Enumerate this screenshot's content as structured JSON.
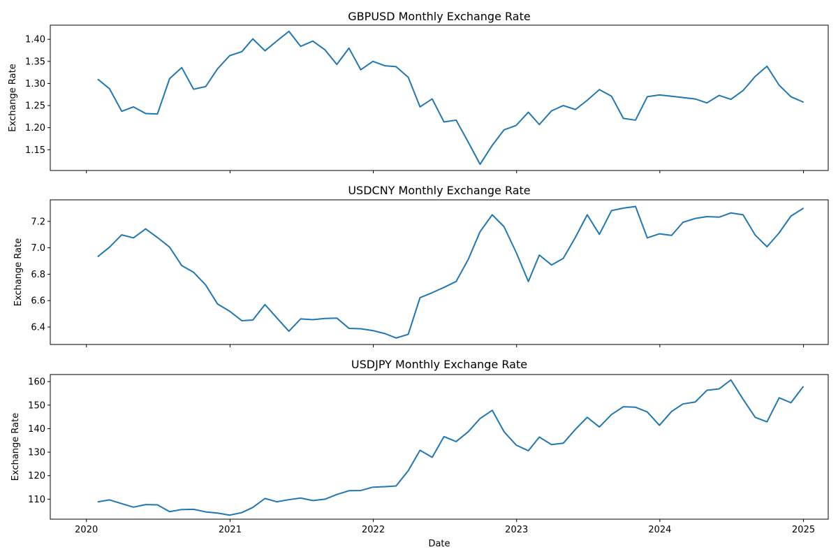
{
  "chart_data": [
    {
      "type": "line",
      "title": "GBPUSD Monthly Exchange Rate",
      "xlabel": "",
      "ylabel": "Exchange Rate",
      "x": [
        "2020-01-31",
        "2020-02-29",
        "2020-03-31",
        "2020-04-30",
        "2020-05-31",
        "2020-06-30",
        "2020-07-31",
        "2020-08-31",
        "2020-09-30",
        "2020-10-31",
        "2020-11-30",
        "2020-12-31",
        "2021-01-31",
        "2021-02-28",
        "2021-03-31",
        "2021-04-30",
        "2021-05-31",
        "2021-06-30",
        "2021-07-31",
        "2021-08-31",
        "2021-09-30",
        "2021-10-31",
        "2021-11-30",
        "2021-12-31",
        "2022-01-31",
        "2022-02-28",
        "2022-03-31",
        "2022-04-30",
        "2022-05-31",
        "2022-06-30",
        "2022-07-31",
        "2022-08-31",
        "2022-09-30",
        "2022-10-31",
        "2022-11-30",
        "2022-12-31",
        "2023-01-31",
        "2023-02-28",
        "2023-03-31",
        "2023-04-30",
        "2023-05-31",
        "2023-06-30",
        "2023-07-31",
        "2023-08-31",
        "2023-09-30",
        "2023-10-31",
        "2023-11-30",
        "2023-12-31",
        "2024-01-31",
        "2024-02-29",
        "2024-03-31",
        "2024-04-30",
        "2024-05-31",
        "2024-06-30",
        "2024-07-31",
        "2024-08-31",
        "2024-09-30",
        "2024-10-31",
        "2024-11-30",
        "2024-12-31"
      ],
      "values": [
        1.309,
        1.288,
        1.237,
        1.247,
        1.232,
        1.231,
        1.311,
        1.336,
        1.287,
        1.293,
        1.333,
        1.363,
        1.372,
        1.401,
        1.374,
        1.396,
        1.418,
        1.384,
        1.396,
        1.376,
        1.343,
        1.38,
        1.331,
        1.35,
        1.34,
        1.338,
        1.314,
        1.247,
        1.265,
        1.213,
        1.217,
        1.167,
        1.117,
        1.16,
        1.195,
        1.205,
        1.235,
        1.207,
        1.238,
        1.25,
        1.241,
        1.262,
        1.286,
        1.271,
        1.221,
        1.217,
        1.27,
        1.274,
        1.271,
        1.268,
        1.265,
        1.256,
        1.273,
        1.264,
        1.284,
        1.316,
        1.339,
        1.296,
        1.27,
        1.258
      ],
      "xlim": [
        "2019-10-01",
        "2025-03-05"
      ],
      "ylim": [
        1.103,
        1.432
      ],
      "yticks": [
        1.15,
        1.2,
        1.25,
        1.3,
        1.35,
        1.4
      ],
      "ytick_labels": [
        "1.15",
        "1.20",
        "1.25",
        "1.30",
        "1.35",
        "1.40"
      ],
      "xticks": [
        "2020-01-01",
        "2021-01-01",
        "2022-01-01",
        "2023-01-01",
        "2024-01-01",
        "2025-01-01"
      ],
      "xtick_labels": [],
      "grid": false,
      "color": "#1f77b4"
    },
    {
      "type": "line",
      "title": "USDCNY Monthly Exchange Rate",
      "xlabel": "",
      "ylabel": "Exchange Rate",
      "x": [
        "2020-01-31",
        "2020-02-29",
        "2020-03-31",
        "2020-04-30",
        "2020-05-31",
        "2020-06-30",
        "2020-07-31",
        "2020-08-31",
        "2020-09-30",
        "2020-10-31",
        "2020-11-30",
        "2020-12-31",
        "2021-01-31",
        "2021-02-28",
        "2021-03-31",
        "2021-04-30",
        "2021-05-31",
        "2021-06-30",
        "2021-07-31",
        "2021-08-31",
        "2021-09-30",
        "2021-10-31",
        "2021-11-30",
        "2021-12-31",
        "2022-01-31",
        "2022-02-28",
        "2022-03-31",
        "2022-04-30",
        "2022-05-31",
        "2022-06-30",
        "2022-07-31",
        "2022-08-31",
        "2022-09-30",
        "2022-10-31",
        "2022-11-30",
        "2022-12-31",
        "2023-01-31",
        "2023-02-28",
        "2023-03-31",
        "2023-04-30",
        "2023-05-31",
        "2023-06-30",
        "2023-07-31",
        "2023-08-31",
        "2023-09-30",
        "2023-10-31",
        "2023-11-30",
        "2023-12-31",
        "2024-01-31",
        "2024-02-29",
        "2024-03-31",
        "2024-04-30",
        "2024-05-31",
        "2024-06-30",
        "2024-07-31",
        "2024-08-31",
        "2024-09-30",
        "2024-10-31",
        "2024-11-30",
        "2024-12-31"
      ],
      "values": [
        6.935,
        7.005,
        7.098,
        7.075,
        7.143,
        7.078,
        7.005,
        6.865,
        6.815,
        6.718,
        6.575,
        6.52,
        6.448,
        6.453,
        6.57,
        6.47,
        6.368,
        6.462,
        6.456,
        6.465,
        6.468,
        6.39,
        6.387,
        6.373,
        6.35,
        6.317,
        6.345,
        6.622,
        6.66,
        6.7,
        6.745,
        6.913,
        7.122,
        7.25,
        7.16,
        6.965,
        6.745,
        6.945,
        6.87,
        6.92,
        7.08,
        7.25,
        7.102,
        7.282,
        7.3,
        7.313,
        7.075,
        7.106,
        7.094,
        7.193,
        7.222,
        7.236,
        7.232,
        7.264,
        7.25,
        7.096,
        7.008,
        7.113,
        7.24,
        7.298
      ],
      "xlim": [
        "2019-10-01",
        "2025-03-05"
      ],
      "ylim": [
        6.268,
        7.363
      ],
      "yticks": [
        6.4,
        6.6,
        6.8,
        7.0,
        7.2
      ],
      "ytick_labels": [
        "6.4",
        "6.6",
        "6.8",
        "7.0",
        "7.2"
      ],
      "xticks": [
        "2020-01-01",
        "2021-01-01",
        "2022-01-01",
        "2023-01-01",
        "2024-01-01",
        "2025-01-01"
      ],
      "xtick_labels": [],
      "grid": false,
      "color": "#1f77b4"
    },
    {
      "type": "line",
      "title": "USDJPY Monthly Exchange Rate",
      "xlabel": "Date",
      "ylabel": "Exchange Rate",
      "x": [
        "2020-01-31",
        "2020-02-29",
        "2020-03-31",
        "2020-04-30",
        "2020-05-31",
        "2020-06-30",
        "2020-07-31",
        "2020-08-31",
        "2020-09-30",
        "2020-10-31",
        "2020-11-30",
        "2020-12-31",
        "2021-01-31",
        "2021-02-28",
        "2021-03-31",
        "2021-04-30",
        "2021-05-31",
        "2021-06-30",
        "2021-07-31",
        "2021-08-31",
        "2021-09-30",
        "2021-10-31",
        "2021-11-30",
        "2021-12-31",
        "2022-01-31",
        "2022-02-28",
        "2022-03-31",
        "2022-04-30",
        "2022-05-31",
        "2022-06-30",
        "2022-07-31",
        "2022-08-31",
        "2022-09-30",
        "2022-10-31",
        "2022-11-30",
        "2022-12-31",
        "2023-01-31",
        "2023-02-28",
        "2023-03-31",
        "2023-04-30",
        "2023-05-31",
        "2023-06-30",
        "2023-07-31",
        "2023-08-31",
        "2023-09-30",
        "2023-10-31",
        "2023-11-30",
        "2023-12-31",
        "2024-01-31",
        "2024-02-29",
        "2024-03-31",
        "2024-04-30",
        "2024-05-31",
        "2024-06-30",
        "2024-07-31",
        "2024-08-31",
        "2024-09-30",
        "2024-10-31",
        "2024-11-30",
        "2024-12-31"
      ],
      "values": [
        108.9,
        109.7,
        108.1,
        106.6,
        107.7,
        107.6,
        104.7,
        105.6,
        105.7,
        104.6,
        104.1,
        103.2,
        104.3,
        106.5,
        110.3,
        108.9,
        109.8,
        110.5,
        109.4,
        110.0,
        112.0,
        113.6,
        113.7,
        115.1,
        115.3,
        115.6,
        122.1,
        130.8,
        127.8,
        136.6,
        134.5,
        138.7,
        144.3,
        147.8,
        138.7,
        133.0,
        130.6,
        136.4,
        133.2,
        133.8,
        139.7,
        144.8,
        140.7,
        146.0,
        149.3,
        149.1,
        147.1,
        141.4,
        147.3,
        150.5,
        151.3,
        156.3,
        156.9,
        160.7,
        152.5,
        144.8,
        142.9,
        153.1,
        151.0,
        157.8
      ],
      "xlim": [
        "2019-10-01",
        "2025-03-05"
      ],
      "ylim": [
        101.5,
        163.0
      ],
      "yticks": [
        110,
        120,
        130,
        140,
        150,
        160
      ],
      "ytick_labels": [
        "110",
        "120",
        "130",
        "140",
        "150",
        "160"
      ],
      "xticks": [
        "2020-01-01",
        "2021-01-01",
        "2022-01-01",
        "2023-01-01",
        "2024-01-01",
        "2025-01-01"
      ],
      "xtick_labels": [
        "2020",
        "2021",
        "2022",
        "2023",
        "2024",
        "2025"
      ],
      "grid": false,
      "color": "#1f77b4"
    }
  ]
}
